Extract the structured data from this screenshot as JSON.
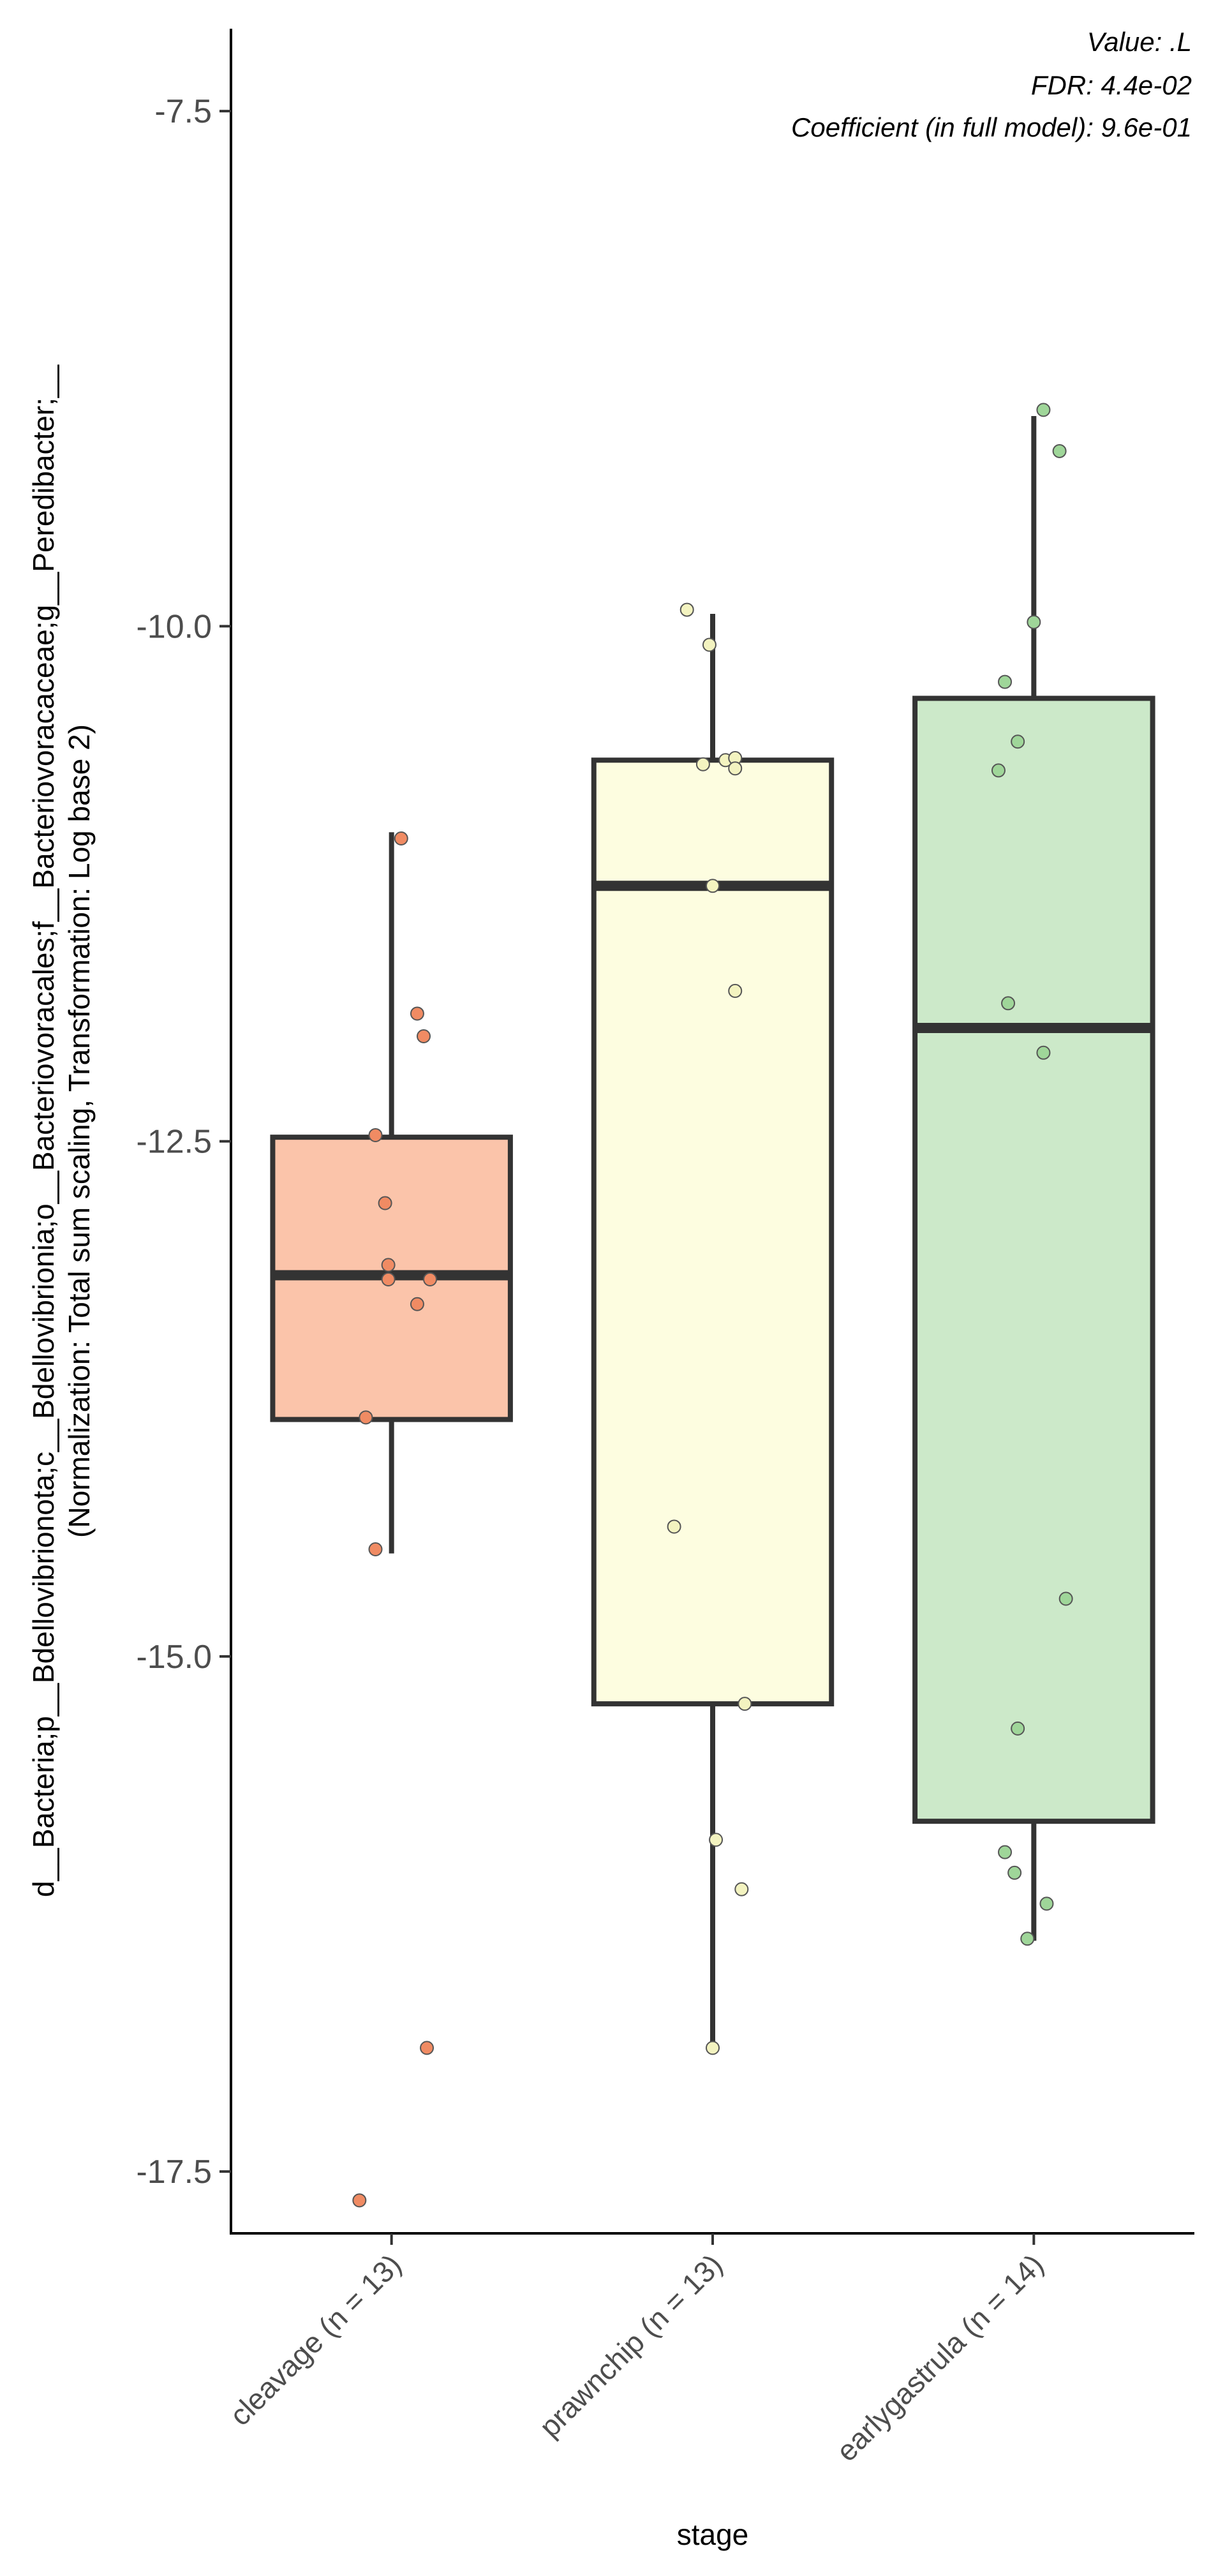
{
  "chart_data": {
    "type": "box",
    "xlabel": "stage",
    "ylabel": "d__Bacteria;p__Bdellovibrionota;c__Bdellovibrionia;o__Bacteriovoracales;f__Bacteriovoracaceae;g__Peredibacter;__",
    "ylabel_line2": "(Normalization: Total sum scaling, Transformation: Log base 2)",
    "ylim": [
      -17.8,
      -7.1
    ],
    "yticks": [
      -7.5,
      -10.0,
      -12.5,
      -15.0,
      -17.5
    ],
    "ytick_labels": [
      "-7.5",
      "-10.0",
      "-12.5",
      "-15.0",
      "-17.5"
    ],
    "grid": false,
    "legend": "none",
    "annotations": [
      "Value: .L",
      "FDR: 4.4e-02",
      "Coefficient (in full model): 9.6e-01"
    ],
    "categories": [
      "cleavage (n = 13)",
      "prawnchip (n = 13)",
      "earlygastrula (n = 14)"
    ],
    "boxes": [
      {
        "category": "cleavage (n = 13)",
        "fill": "#fbc4aa",
        "point_color": "#f08b63",
        "whisker_low": -14.5,
        "q1": -13.85,
        "median": -13.15,
        "q3": -12.48,
        "whisker_high": -11.0
      },
      {
        "category": "prawnchip (n = 13)",
        "fill": "#fdfde0",
        "point_color": "#f3f3c0",
        "whisker_low": -16.9,
        "q1": -15.23,
        "median": -11.26,
        "q3": -10.65,
        "whisker_high": -9.94
      },
      {
        "category": "earlygastrula (n = 14)",
        "fill": "#cce9c9",
        "point_color": "#9fd699",
        "whisker_low": -16.38,
        "q1": -15.8,
        "median": -11.95,
        "q3": -10.35,
        "whisker_high": -8.98
      }
    ],
    "points": [
      [
        {
          "x": 0.03,
          "y": -11.03
        },
        {
          "x": 0.08,
          "y": -11.88
        },
        {
          "x": 0.1,
          "y": -11.99
        },
        {
          "x": -0.05,
          "y": -12.47
        },
        {
          "x": -0.02,
          "y": -12.8
        },
        {
          "x": -0.01,
          "y": -13.1
        },
        {
          "x": -0.01,
          "y": -13.17
        },
        {
          "x": 0.12,
          "y": -13.17
        },
        {
          "x": 0.08,
          "y": -13.29
        },
        {
          "x": -0.08,
          "y": -13.84
        },
        {
          "x": -0.05,
          "y": -14.48
        },
        {
          "x": 0.11,
          "y": -16.9
        },
        {
          "x": -0.1,
          "y": -17.64
        }
      ],
      [
        {
          "x": -0.08,
          "y": -9.92
        },
        {
          "x": -0.01,
          "y": -10.09
        },
        {
          "x": -0.03,
          "y": -10.67
        },
        {
          "x": 0.04,
          "y": -10.65
        },
        {
          "x": 0.07,
          "y": -10.64
        },
        {
          "x": 0.07,
          "y": -10.69
        },
        {
          "x": 0.0,
          "y": -11.26
        },
        {
          "x": 0.07,
          "y": -11.77
        },
        {
          "x": -0.12,
          "y": -14.37
        },
        {
          "x": 0.1,
          "y": -15.23
        },
        {
          "x": 0.01,
          "y": -15.89
        },
        {
          "x": 0.09,
          "y": -16.13
        },
        {
          "x": 0.0,
          "y": -16.9
        }
      ],
      [
        {
          "x": 0.03,
          "y": -8.95
        },
        {
          "x": 0.08,
          "y": -9.15
        },
        {
          "x": 0.0,
          "y": -9.98
        },
        {
          "x": -0.09,
          "y": -10.27
        },
        {
          "x": -0.05,
          "y": -10.56
        },
        {
          "x": -0.11,
          "y": -10.7
        },
        {
          "x": -0.08,
          "y": -11.83
        },
        {
          "x": 0.03,
          "y": -12.07
        },
        {
          "x": 0.1,
          "y": -14.72
        },
        {
          "x": -0.05,
          "y": -15.35
        },
        {
          "x": -0.09,
          "y": -15.95
        },
        {
          "x": -0.06,
          "y": -16.05
        },
        {
          "x": 0.04,
          "y": -16.2
        },
        {
          "x": -0.02,
          "y": -16.37
        }
      ]
    ]
  }
}
